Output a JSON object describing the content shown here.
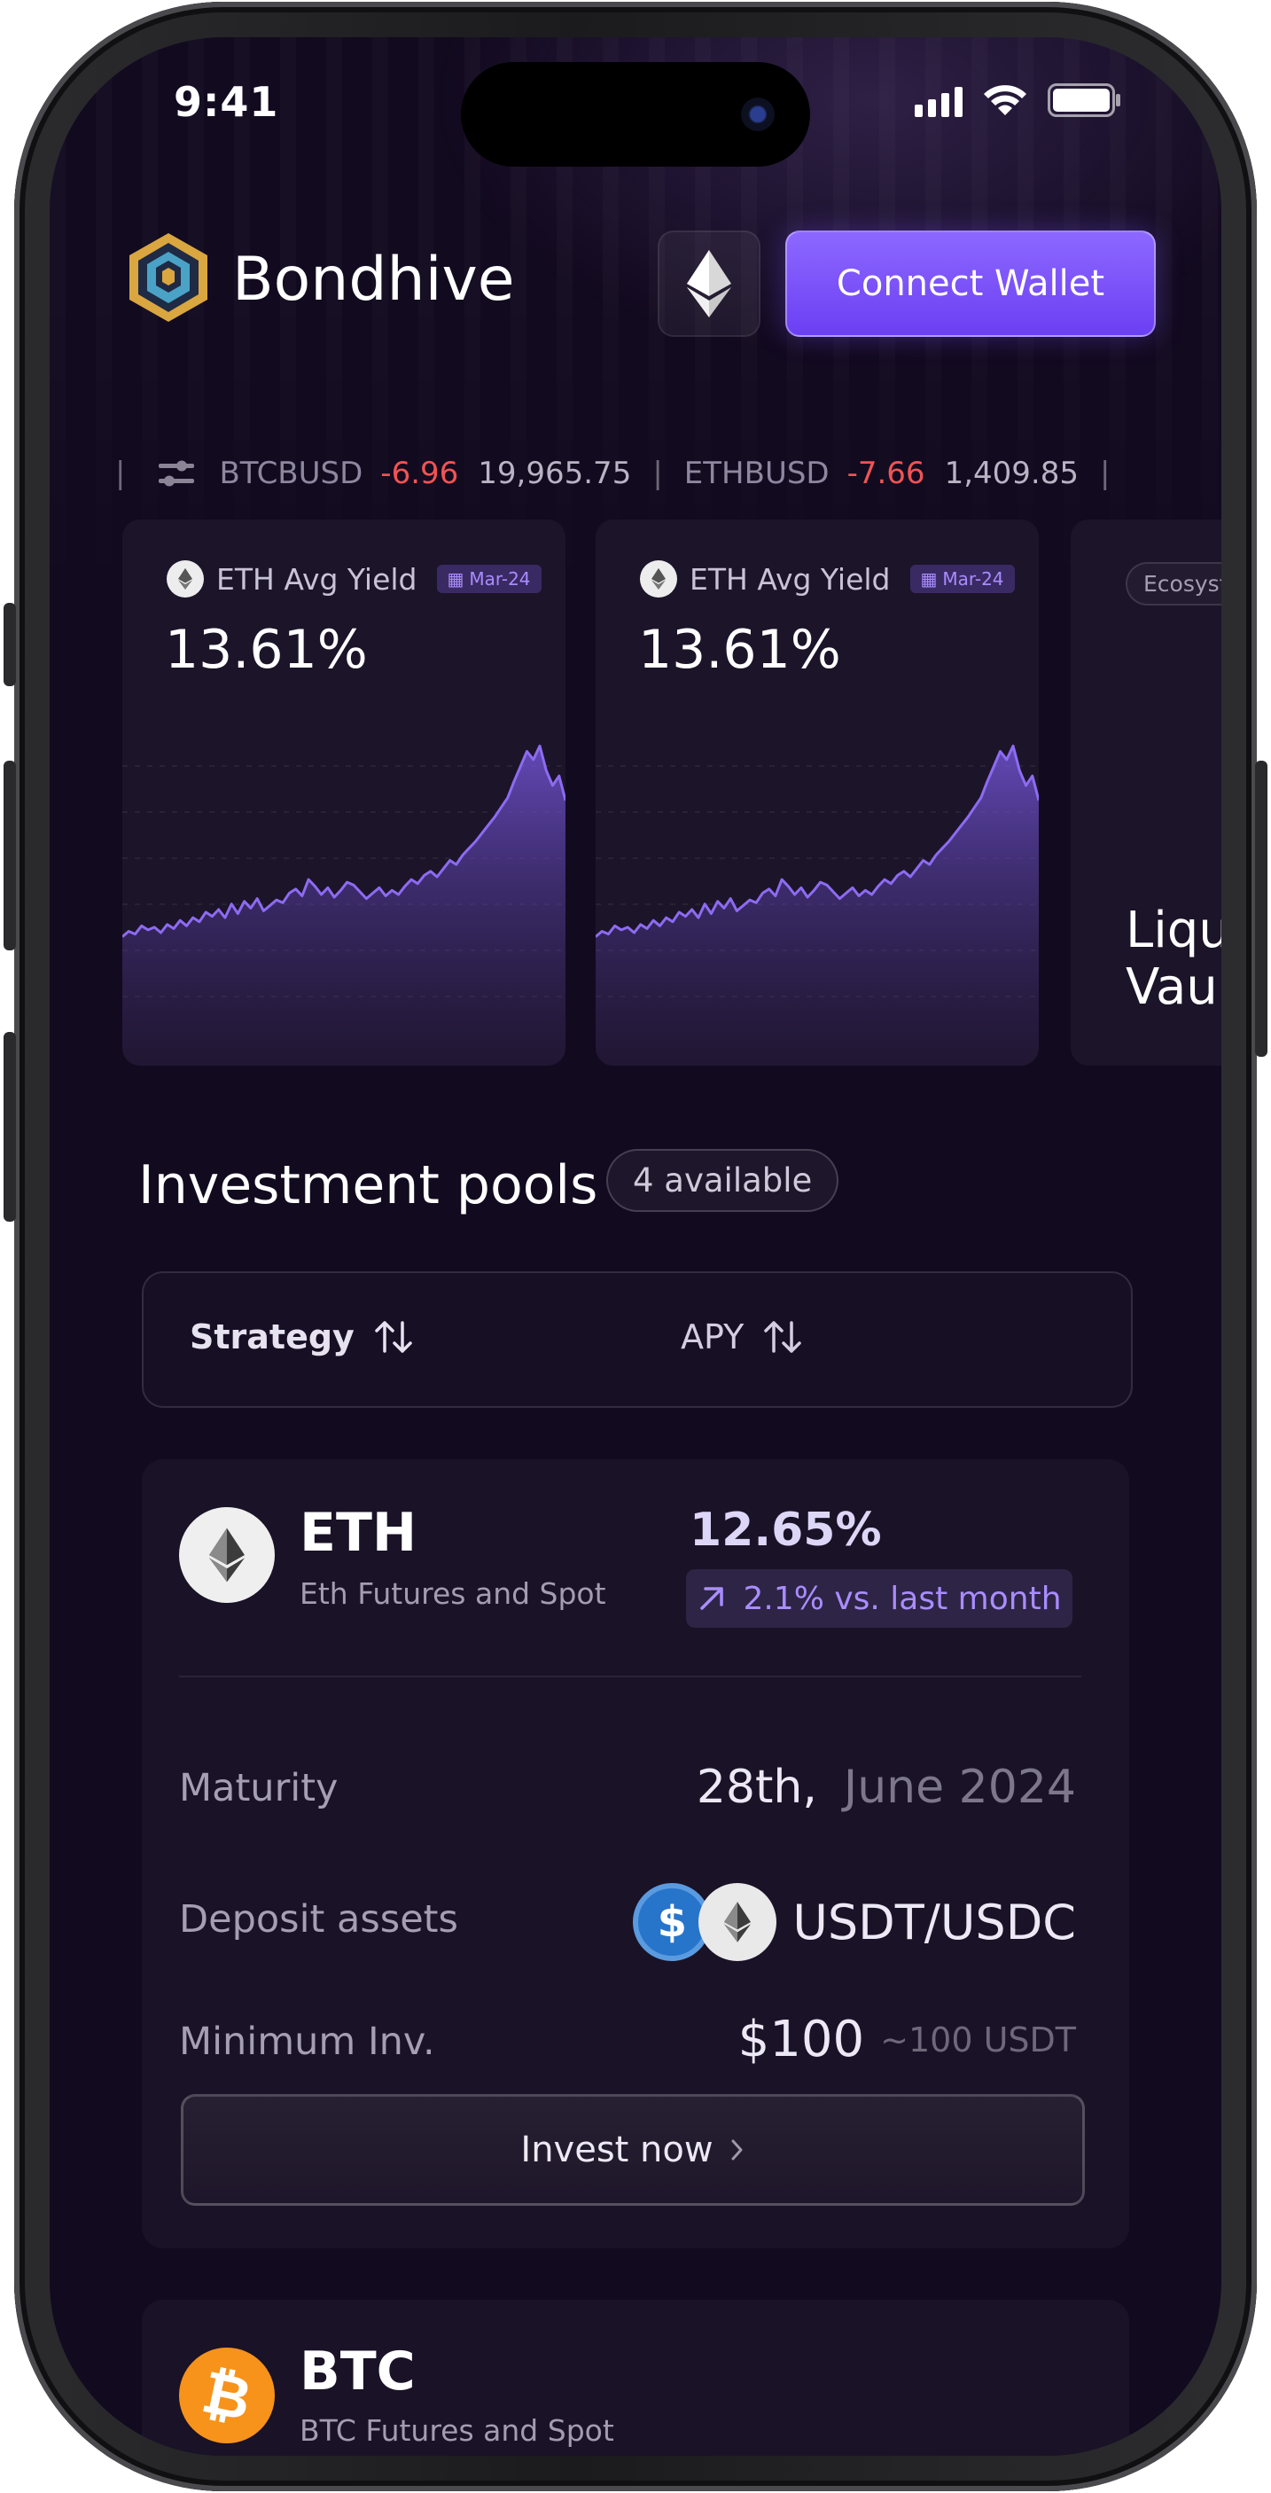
{
  "status_bar": {
    "time": "9:41"
  },
  "header": {
    "brand": "Bondhive",
    "network_icon": "ethereum-icon",
    "connect_label": "Connect Wallet"
  },
  "ticker": [
    {
      "symbol": "BTCBUSD",
      "change": "-6.96",
      "price": "19,965.75"
    },
    {
      "symbol": "ETHBUSD",
      "change": "-7.66",
      "price": "1,409.85"
    }
  ],
  "cards": [
    {
      "label": "ETH Avg Yield",
      "date": "Mar-24",
      "value": "13.61%"
    },
    {
      "label": "ETH Avg Yield",
      "date": "Mar-24",
      "value": "13.61%"
    },
    {
      "chip": "Ecosyst",
      "title_line1": "Liqu",
      "title_line2": "Vau"
    }
  ],
  "chart_data": {
    "type": "area",
    "values": [
      10,
      14,
      12,
      18,
      15,
      17,
      13,
      19,
      16,
      22,
      18,
      24,
      21,
      28,
      25,
      30,
      24,
      34,
      27,
      36,
      31,
      38,
      29,
      33,
      37,
      35,
      42,
      45,
      40,
      52,
      47,
      41,
      46,
      39,
      44,
      50,
      48,
      43,
      38,
      42,
      46,
      40,
      44,
      41,
      47,
      52,
      49,
      55,
      58,
      54,
      60,
      66,
      63,
      70,
      75,
      80,
      86,
      92,
      98,
      105,
      112,
      124,
      135,
      146,
      140,
      150,
      132,
      121,
      128,
      110
    ],
    "ylim": [
      0,
      160
    ],
    "color": "#8d6bf2"
  },
  "pools_section": {
    "title": "Investment pools",
    "available": "4 available",
    "sort_strategy": "Strategy",
    "sort_apy": "APY"
  },
  "pools": [
    {
      "name": "ETH",
      "subtitle": "Eth Futures and Spot",
      "apy": "12.65%",
      "trend": "2.1% vs. last month",
      "maturity_label": "Maturity",
      "maturity_day": "28th,",
      "maturity_rest": "June 2024",
      "deposit_label": "Deposit assets",
      "deposit_value": "USDT/USDC",
      "min_label": "Minimum Inv.",
      "min_value": "$100",
      "min_sub": "~100 USDT",
      "invest_label": "Invest now"
    },
    {
      "name": "BTC",
      "subtitle": "BTC Futures and Spot"
    }
  ],
  "colors": {
    "background": "#120a1f",
    "accent": "#7b52fb",
    "negative": "#f05454",
    "bitcoin": "#f7931a",
    "usdc": "#2775ca"
  }
}
